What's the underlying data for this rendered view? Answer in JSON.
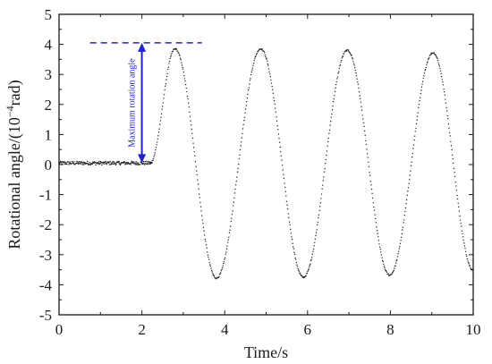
{
  "chart_data": {
    "type": "scatter",
    "title": "",
    "xlabel": "Time/s",
    "ylabel_main": "Rotational angle/(10",
    "ylabel_sup": "−4",
    "ylabel_end": "rad)",
    "xlim": [
      0,
      10
    ],
    "ylim": [
      -5,
      5
    ],
    "xticks": [
      0,
      2,
      4,
      6,
      8,
      10
    ],
    "yticks": [
      -5,
      -4,
      -3,
      -2,
      -1,
      0,
      1,
      2,
      3,
      4,
      5
    ],
    "grid": false,
    "legend": "none",
    "series": [
      {
        "marker": "dots",
        "color": "#222222",
        "segments": [
          {
            "kind": "flat",
            "x_range": [
              0,
              2.25
            ],
            "mean": 0.05,
            "band": 0.12
          },
          {
            "kind": "oscillation",
            "peaks": [
              {
                "x": 2.8,
                "y": 3.85
              },
              {
                "x": 4.87,
                "y": 3.85
              },
              {
                "x": 6.96,
                "y": 3.8
              },
              {
                "x": 9.03,
                "y": 3.72
              }
            ],
            "troughs": [
              {
                "x": 3.8,
                "y": -3.78
              },
              {
                "x": 5.9,
                "y": -3.75
              },
              {
                "x": 7.98,
                "y": -3.68
              }
            ],
            "start": {
              "x": 2.2,
              "y": 0.05
            },
            "end": {
              "x": 10.0,
              "y": -3.5
            }
          }
        ]
      }
    ],
    "annotations": {
      "max_line": {
        "y": 4.05,
        "x_range": [
          0.75,
          3.45
        ],
        "color": "#2222cc",
        "style": "dashed"
      },
      "arrow": {
        "x": 2.0,
        "y_range": [
          0.05,
          4.05
        ],
        "color": "#2222cc"
      },
      "label": {
        "text": "Maximum rotation angle",
        "color": "#2222cc",
        "x": 1.82,
        "y": 2.05
      }
    }
  }
}
